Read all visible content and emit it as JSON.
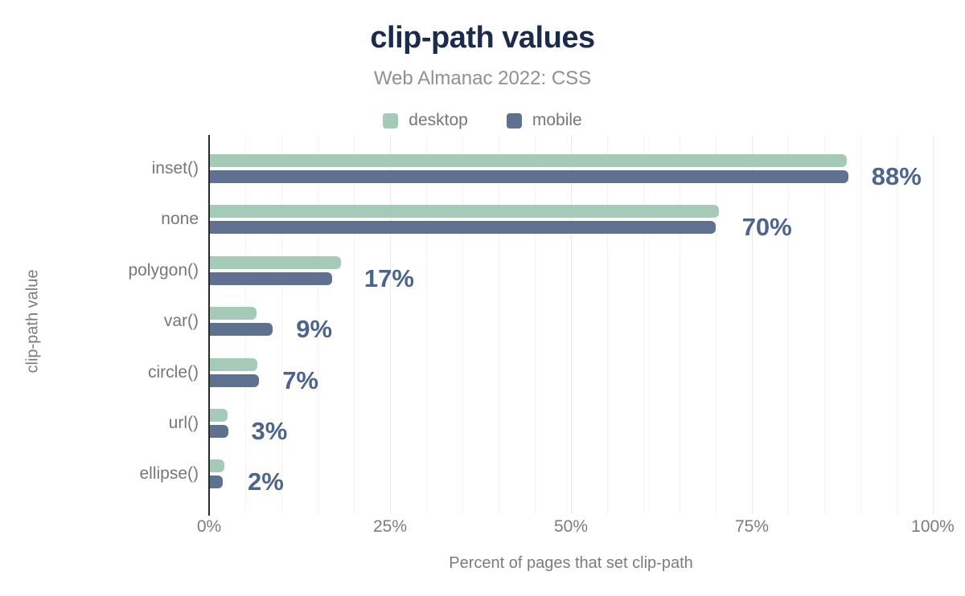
{
  "title": "clip-path values",
  "subtitle": "Web Almanac 2022: CSS",
  "legend": {
    "items": [
      {
        "label": "desktop"
      },
      {
        "label": "mobile"
      }
    ]
  },
  "colors": {
    "desktop": "#a5cab8",
    "mobile": "#5e7190",
    "title": "#1b2b4b",
    "subtitle": "#909090",
    "value_label": "#4d648c",
    "axis_text": "#777777",
    "gridline_minor": "#f3f3f3",
    "gridline_major": "#eaeaea",
    "axis_line": "#24292e",
    "background": "#ffffff"
  },
  "chart_data": {
    "type": "bar",
    "orientation": "horizontal",
    "title": "clip-path values",
    "subtitle": "Web Almanac 2022: CSS",
    "categories": [
      "inset()",
      "none",
      "polygon()",
      "var()",
      "circle()",
      "url()",
      "ellipse()"
    ],
    "series": [
      {
        "name": "desktop",
        "values": [
          88.0,
          70.3,
          18.1,
          6.4,
          6.6,
          2.4,
          2.0
        ]
      },
      {
        "name": "mobile",
        "values": [
          88.2,
          69.9,
          16.9,
          8.7,
          6.8,
          2.5,
          1.8
        ]
      }
    ],
    "value_labels": [
      "88%",
      "70%",
      "17%",
      "9%",
      "7%",
      "3%",
      "2%"
    ],
    "xlabel": "Percent of pages that set clip-path",
    "ylabel": "clip-path value",
    "xlim": [
      0,
      100
    ],
    "x_ticks": [
      {
        "value": 0,
        "label": "0%"
      },
      {
        "value": 25,
        "label": "25%"
      },
      {
        "value": 50,
        "label": "50%"
      },
      {
        "value": 75,
        "label": "75%"
      },
      {
        "value": 100,
        "label": "100%"
      }
    ],
    "gridlines": {
      "minor_step": 5,
      "major_step": 25,
      "visible": true
    },
    "legend_position": "top"
  }
}
